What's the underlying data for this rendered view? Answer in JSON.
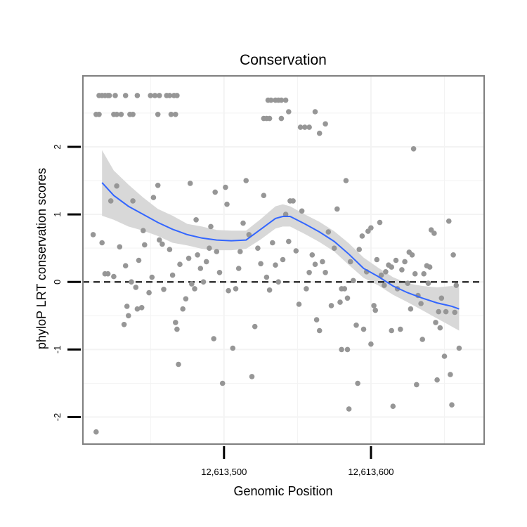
{
  "chart_data": {
    "type": "scatter",
    "title": "Conservation",
    "xlabel": "Genomic Position",
    "ylabel": "phyloP LRT conservation scores",
    "xlim": [
      12613404,
      12613677
    ],
    "ylim": [
      -2.4,
      3.05
    ],
    "x_ticks": [
      {
        "value": 12613500,
        "label": "12,613,500"
      },
      {
        "value": 12613600,
        "label": "12,613,600"
      }
    ],
    "y_ticks": [
      {
        "value": -2,
        "label": "-2"
      },
      {
        "value": -1,
        "label": "-1"
      },
      {
        "value": 0,
        "label": "0"
      },
      {
        "value": 1,
        "label": "1"
      },
      {
        "value": 2,
        "label": "2"
      }
    ],
    "reference_line": {
      "y": 0,
      "style": "dashed",
      "color": "#000000"
    },
    "grid": true,
    "colors": {
      "points": "#969696",
      "smooth": "#3366ff",
      "ribbon": "#d6d6d6",
      "panel_border": "#7f7f7f",
      "grid": "#f3f3f3"
    },
    "series": [
      {
        "kind": "points",
        "points": [
          [
            12613415,
            2.76
          ],
          [
            12613417,
            2.76
          ],
          [
            12613419,
            2.76
          ],
          [
            12613421,
            2.76
          ],
          [
            12613422,
            2.76
          ],
          [
            12613426,
            2.76
          ],
          [
            12613433,
            2.76
          ],
          [
            12613441,
            2.76
          ],
          [
            12613450,
            2.76
          ],
          [
            12613453,
            2.76
          ],
          [
            12613456,
            2.76
          ],
          [
            12613461,
            2.76
          ],
          [
            12613463,
            2.76
          ],
          [
            12613466,
            2.76
          ],
          [
            12613468,
            2.76
          ],
          [
            12613413,
            2.48
          ],
          [
            12613415,
            2.48
          ],
          [
            12613425,
            2.48
          ],
          [
            12613427,
            2.48
          ],
          [
            12613430,
            2.48
          ],
          [
            12613436,
            2.48
          ],
          [
            12613438,
            2.48
          ],
          [
            12613455,
            2.48
          ],
          [
            12613464,
            2.48
          ],
          [
            12613467,
            2.48
          ],
          [
            12613527,
            2.42
          ],
          [
            12613529,
            2.42
          ],
          [
            12613531,
            2.42
          ],
          [
            12613539,
            2.42
          ],
          [
            12613530,
            2.69
          ],
          [
            12613532,
            2.69
          ],
          [
            12613535,
            2.69
          ],
          [
            12613537,
            2.69
          ],
          [
            12613539,
            2.69
          ],
          [
            12613542,
            2.69
          ],
          [
            12613544,
            2.52
          ],
          [
            12613552,
            2.29
          ],
          [
            12613555,
            2.29
          ],
          [
            12613558,
            2.29
          ],
          [
            12613562,
            2.52
          ],
          [
            12613565,
            2.2
          ],
          [
            12613569,
            2.34
          ],
          [
            12613413,
            -2.22
          ],
          [
            12613417,
            0.58
          ],
          [
            12613411,
            0.7
          ],
          [
            12613419,
            0.12
          ],
          [
            12613421,
            0.12
          ],
          [
            12613423,
            1.2
          ],
          [
            12613425,
            0.08
          ],
          [
            12613427,
            1.42
          ],
          [
            12613429,
            0.52
          ],
          [
            12613432,
            -0.63
          ],
          [
            12613433,
            0.24
          ],
          [
            12613434,
            -0.36
          ],
          [
            12613435,
            -0.5
          ],
          [
            12613437,
            0.0
          ],
          [
            12613438,
            1.2
          ],
          [
            12613440,
            -0.08
          ],
          [
            12613441,
            -0.4
          ],
          [
            12613442,
            0.32
          ],
          [
            12613444,
            -0.38
          ],
          [
            12613445,
            0.76
          ],
          [
            12613446,
            0.55
          ],
          [
            12613449,
            -0.16
          ],
          [
            12613451,
            0.07
          ],
          [
            12613452,
            1.25
          ],
          [
            12613455,
            1.43
          ],
          [
            12613456,
            0.62
          ],
          [
            12613458,
            0.56
          ],
          [
            12613459,
            -0.11
          ],
          [
            12613463,
            0.48
          ],
          [
            12613465,
            0.1
          ],
          [
            12613467,
            -0.6
          ],
          [
            12613468,
            -0.7
          ],
          [
            12613469,
            -1.22
          ],
          [
            12613470,
            0.26
          ],
          [
            12613472,
            -0.4
          ],
          [
            12613474,
            -0.25
          ],
          [
            12613476,
            0.35
          ],
          [
            12613477,
            1.46
          ],
          [
            12613478,
            -0.03
          ],
          [
            12613480,
            -0.1
          ],
          [
            12613481,
            0.92
          ],
          [
            12613482,
            0.4
          ],
          [
            12613484,
            0.2
          ],
          [
            12613486,
            0.0
          ],
          [
            12613488,
            0.3
          ],
          [
            12613490,
            0.5
          ],
          [
            12613491,
            0.82
          ],
          [
            12613493,
            -0.84
          ],
          [
            12613494,
            1.33
          ],
          [
            12613495,
            0.45
          ],
          [
            12613497,
            0.14
          ],
          [
            12613499,
            -1.5
          ],
          [
            12613501,
            1.4
          ],
          [
            12613502,
            1.15
          ],
          [
            12613503,
            -0.13
          ],
          [
            12613506,
            -0.98
          ],
          [
            12613508,
            -0.1
          ],
          [
            12613510,
            0.2
          ],
          [
            12613511,
            0.45
          ],
          [
            12613513,
            0.87
          ],
          [
            12613515,
            1.5
          ],
          [
            12613517,
            0.7
          ],
          [
            12613519,
            -1.4
          ],
          [
            12613521,
            -0.66
          ],
          [
            12613523,
            0.5
          ],
          [
            12613525,
            0.27
          ],
          [
            12613527,
            1.28
          ],
          [
            12613529,
            0.07
          ],
          [
            12613531,
            -0.12
          ],
          [
            12613533,
            0.58
          ],
          [
            12613535,
            0.25
          ],
          [
            12613537,
            0.0
          ],
          [
            12613540,
            0.33
          ],
          [
            12613542,
            1.0
          ],
          [
            12613544,
            0.6
          ],
          [
            12613545,
            1.2
          ],
          [
            12613547,
            1.2
          ],
          [
            12613549,
            0.46
          ],
          [
            12613551,
            -0.33
          ],
          [
            12613553,
            1.05
          ],
          [
            12613556,
            -0.1
          ],
          [
            12613558,
            0.14
          ],
          [
            12613560,
            0.4
          ],
          [
            12613562,
            0.26
          ],
          [
            12613563,
            -0.56
          ],
          [
            12613565,
            -0.72
          ],
          [
            12613567,
            0.3
          ],
          [
            12613569,
            0.14
          ],
          [
            12613571,
            0.74
          ],
          [
            12613573,
            -0.35
          ],
          [
            12613575,
            0.5
          ],
          [
            12613577,
            1.08
          ],
          [
            12613579,
            -0.3
          ],
          [
            12613580,
            -1.0
          ],
          [
            12613582,
            -0.1
          ],
          [
            12613583,
            1.5
          ],
          [
            12613584,
            -0.24
          ],
          [
            12613586,
            0.3
          ],
          [
            12613588,
            0.02
          ],
          [
            12613590,
            -0.64
          ],
          [
            12613591,
            -1.5
          ],
          [
            12613592,
            0.48
          ],
          [
            12613594,
            0.68
          ],
          [
            12613595,
            -0.7
          ],
          [
            12613597,
            0.15
          ],
          [
            12613598,
            0.75
          ],
          [
            12613600,
            0.8
          ],
          [
            12613600,
            -0.92
          ],
          [
            12613602,
            -0.35
          ],
          [
            12613603,
            -0.42
          ],
          [
            12613604,
            0.33
          ],
          [
            12613606,
            0.88
          ],
          [
            12613607,
            0.1
          ],
          [
            12613609,
            -0.05
          ],
          [
            12613610,
            0.15
          ],
          [
            12613612,
            0.25
          ],
          [
            12613614,
            0.22
          ],
          [
            12613614,
            -0.72
          ],
          [
            12613615,
            -1.84
          ],
          [
            12613617,
            0.32
          ],
          [
            12613618,
            -0.1
          ],
          [
            12613620,
            -0.7
          ],
          [
            12613621,
            0.18
          ],
          [
            12613623,
            0.3
          ],
          [
            12613625,
            -0.02
          ],
          [
            12613626,
            0.44
          ],
          [
            12613627,
            -0.4
          ],
          [
            12613628,
            0.4
          ],
          [
            12613629,
            1.97
          ],
          [
            12613630,
            0.12
          ],
          [
            12613631,
            -1.52
          ],
          [
            12613632,
            -0.2
          ],
          [
            12613634,
            -0.32
          ],
          [
            12613635,
            -0.85
          ],
          [
            12613636,
            0.12
          ],
          [
            12613638,
            0.24
          ],
          [
            12613639,
            -0.02
          ],
          [
            12613640,
            0.22
          ],
          [
            12613641,
            0.77
          ],
          [
            12613643,
            0.72
          ],
          [
            12613644,
            -0.6
          ],
          [
            12613645,
            -1.45
          ],
          [
            12613646,
            -0.44
          ],
          [
            12613647,
            -0.68
          ],
          [
            12613648,
            -0.24
          ],
          [
            12613650,
            -1.1
          ],
          [
            12613651,
            -0.44
          ],
          [
            12613653,
            0.9
          ],
          [
            12613654,
            -1.37
          ],
          [
            12613655,
            -1.82
          ],
          [
            12613656,
            0.4
          ],
          [
            12613657,
            -0.45
          ],
          [
            12613658,
            -0.05
          ],
          [
            12613660,
            -0.98
          ],
          [
            12613585,
            -1.88
          ],
          [
            12613584,
            -1.0
          ],
          [
            12613580,
            -0.1
          ]
        ]
      },
      {
        "kind": "loess-smooth",
        "x": [
          12613417,
          12613425,
          12613435,
          12613445,
          12613455,
          12613465,
          12613475,
          12613485,
          12613495,
          12613505,
          12613515,
          12613525,
          12613535,
          12613540,
          12613545,
          12613555,
          12613565,
          12613575,
          12613585,
          12613595,
          12613605,
          12613615,
          12613625,
          12613635,
          12613645,
          12613655,
          12613660
        ],
        "y": [
          1.47,
          1.28,
          1.12,
          1.0,
          0.88,
          0.78,
          0.7,
          0.65,
          0.62,
          0.61,
          0.62,
          0.78,
          0.94,
          0.97,
          0.97,
          0.86,
          0.74,
          0.6,
          0.41,
          0.2,
          0.08,
          -0.06,
          -0.16,
          -0.24,
          -0.31,
          -0.36,
          -0.4
        ],
        "lower": [
          0.98,
          0.92,
          0.82,
          0.76,
          0.68,
          0.58,
          0.54,
          0.49,
          0.47,
          0.47,
          0.49,
          0.63,
          0.79,
          0.82,
          0.82,
          0.71,
          0.59,
          0.45,
          0.25,
          0.06,
          -0.05,
          -0.19,
          -0.3,
          -0.42,
          -0.54,
          -0.66,
          -0.72
        ],
        "upper": [
          1.95,
          1.65,
          1.44,
          1.25,
          1.08,
          0.98,
          0.86,
          0.82,
          0.77,
          0.76,
          0.76,
          0.93,
          1.12,
          1.15,
          1.12,
          1.0,
          0.89,
          0.75,
          0.57,
          0.36,
          0.21,
          0.07,
          -0.02,
          -0.06,
          -0.08,
          -0.06,
          -0.08
        ]
      }
    ]
  }
}
